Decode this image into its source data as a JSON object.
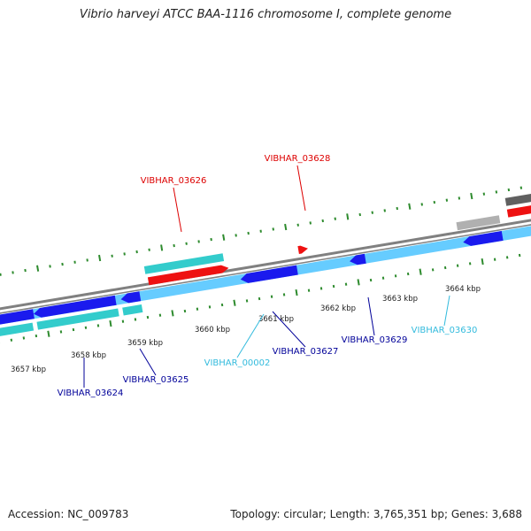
{
  "title": "Vibrio harveyi ATCC BAA-1116 chromosome I, complete genome",
  "accession": "Accession: NC_009783",
  "summary": "Topology: circular; Length: 3,765,351 bp; Genes: 3,688",
  "colors": {
    "background": "#ffffff",
    "backbone": "#808080",
    "tick": "#2e8b2e",
    "gene_red": "#ee1111",
    "gene_teal": "#33cccc",
    "gene_blue": "#1a1aee",
    "gene_lightblue": "#66ccff",
    "gene_gray": "#b0b0b0",
    "gene_darkgray": "#606060",
    "label_red": "#dd0000",
    "label_navy": "#000099",
    "label_cyan": "#33bbdd",
    "text": "#222222"
  },
  "scale": [
    {
      "label": "3657 kbp"
    },
    {
      "label": "3658 kbp"
    },
    {
      "label": "3659 kbp"
    },
    {
      "label": "3660 kbp"
    },
    {
      "label": "3661 kbp"
    },
    {
      "label": "3662 kbp"
    },
    {
      "label": "3663 kbp"
    },
    {
      "label": "3664 kbp"
    }
  ],
  "genes": [
    {
      "name": "VIBHAR_03624",
      "color": "label_navy"
    },
    {
      "name": "VIBHAR_03625",
      "color": "label_navy"
    },
    {
      "name": "VIBHAR_03626",
      "color": "label_red"
    },
    {
      "name": "VIBHAR_00002",
      "color": "label_cyan"
    },
    {
      "name": "VIBHAR_03627",
      "color": "label_navy"
    },
    {
      "name": "VIBHAR_03628",
      "color": "label_red"
    },
    {
      "name": "VIBHAR_03629",
      "color": "label_navy"
    },
    {
      "name": "VIBHAR_03630",
      "color": "label_cyan"
    }
  ]
}
